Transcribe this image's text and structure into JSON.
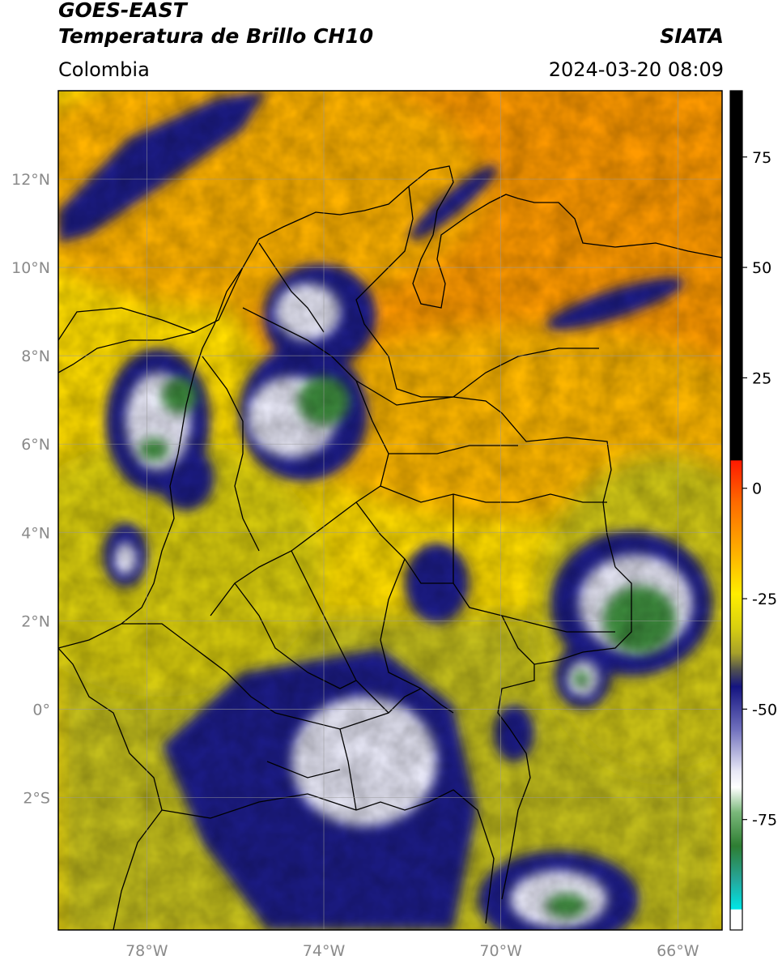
{
  "header": {
    "satellite": "GOES-EAST",
    "product": "Temperatura de Brillo CH10",
    "agency": "SIATA",
    "region": "Colombia",
    "datetime": "2024-03-20 08:09"
  },
  "map": {
    "lon_range": [
      -80,
      -65
    ],
    "lat_range": [
      -5,
      14
    ],
    "lat_ticks": [
      {
        "value": 12,
        "label": "12°N"
      },
      {
        "value": 10,
        "label": "10°N"
      },
      {
        "value": 8,
        "label": "8°N"
      },
      {
        "value": 6,
        "label": "6°N"
      },
      {
        "value": 4,
        "label": "4°N"
      },
      {
        "value": 2,
        "label": "2°N"
      },
      {
        "value": 0,
        "label": "0°"
      },
      {
        "value": -2,
        "label": "2°S"
      }
    ],
    "lon_ticks": [
      {
        "value": -78,
        "label": "78°W"
      },
      {
        "value": -74,
        "label": "74°W"
      },
      {
        "value": -70,
        "label": "70°W"
      },
      {
        "value": -66,
        "label": "66°W"
      }
    ],
    "grid": true
  },
  "colorbar": {
    "range": [
      -100,
      90
    ],
    "ticks": [
      {
        "value": 75,
        "label": "75"
      },
      {
        "value": 50,
        "label": "50"
      },
      {
        "value": 25,
        "label": "25"
      },
      {
        "value": 0,
        "label": "0"
      },
      {
        "value": -25,
        "label": "-25"
      },
      {
        "value": -50,
        "label": "-50"
      },
      {
        "value": -75,
        "label": "-75"
      }
    ],
    "colors": {
      "warm_black": "#000000",
      "red": "#ff1a00",
      "orange": "#ff9900",
      "yellow": "#ffee00",
      "olive": "#b8b81a",
      "navy": "#141480",
      "white": "#ffffff",
      "green": "#2e7d32",
      "cyan": "#00e5e5"
    }
  }
}
